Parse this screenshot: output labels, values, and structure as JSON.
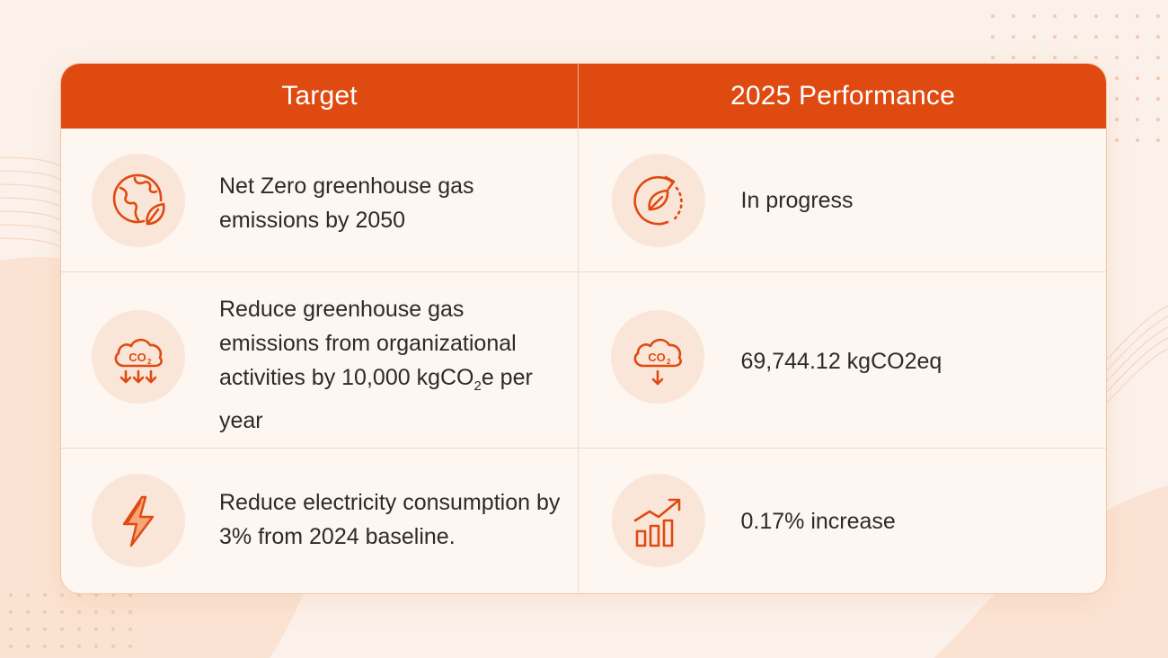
{
  "header": {
    "target_label": "Target",
    "performance_label": "2025 Performance"
  },
  "rows": [
    {
      "target_icon": "globe-leaf-icon",
      "target_text": "Net Zero greenhouse gas emissions by 2050",
      "performance_icon": "leaf-cycle-icon",
      "performance_text": "In progress"
    },
    {
      "target_icon": "co2-cloud-down-arrows-icon",
      "target_text_prefix": "Reduce greenhouse gas emissions from organizational activities by 10,000 kgCO",
      "target_text_sub": "2",
      "target_text_suffix": "e per year",
      "performance_icon": "co2-cloud-down-arrow-icon",
      "co2_icon_label": "CO",
      "co2_icon_sub": "2",
      "performance_text": "69,744.12 kgCO2eq"
    },
    {
      "target_icon": "lightning-bolt-icon",
      "target_text": "Reduce electricity consumption by 3% from 2024 baseline.",
      "performance_icon": "bar-chart-trend-up-icon",
      "performance_text": "0.17% increase"
    }
  ],
  "colors": {
    "accent": "#df4a11",
    "background": "#fbf1ea",
    "card": "#fdf6f1",
    "icon_circle": "#fae6d8",
    "text": "#2b2b2b"
  }
}
